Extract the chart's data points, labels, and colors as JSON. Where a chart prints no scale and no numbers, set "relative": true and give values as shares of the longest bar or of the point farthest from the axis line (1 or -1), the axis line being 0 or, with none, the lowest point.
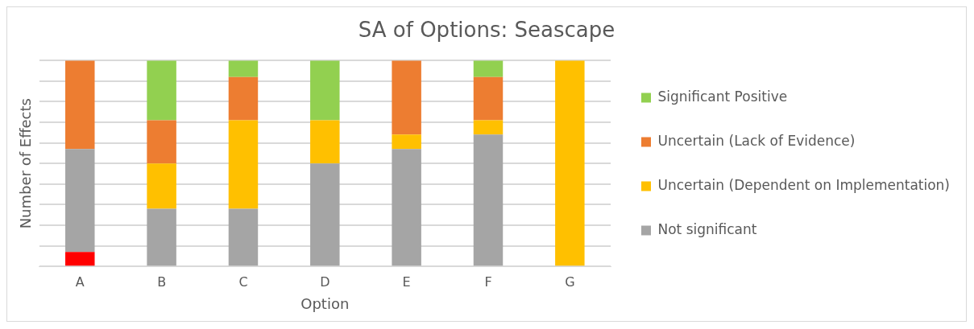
{
  "chart_data": {
    "type": "bar",
    "title": "SA of Options: Seascape",
    "xlabel": "Option",
    "ylabel": "Number of Effects",
    "relative": true,
    "stacked": true,
    "grid": "y",
    "legend": "right",
    "categories": [
      "A",
      "B",
      "C",
      "D",
      "E",
      "F",
      "G"
    ],
    "series": [
      {
        "color": "#ff0000",
        "values": [
          0.07,
          0,
          0,
          0,
          0,
          0,
          0
        ]
      },
      {
        "name": "Not significant",
        "color": "#a5a5a5",
        "values": [
          0.5,
          0.28,
          0.28,
          0.5,
          0.57,
          0.64,
          0
        ]
      },
      {
        "name": "Uncertain (Dependent on Implementation)",
        "color": "#ffc000",
        "values": [
          0,
          0.22,
          0.43,
          0.21,
          0.07,
          0.07,
          1
        ]
      },
      {
        "name": "Uncertain (Lack of Evidence)",
        "color": "#ed7d31",
        "values": [
          0.43,
          0.21,
          0.21,
          0,
          0.36,
          0.21,
          0
        ]
      },
      {
        "name": "Significant Positive",
        "color": "#92d050",
        "values": [
          0,
          0.29,
          0.08,
          0.29,
          0,
          0.08,
          0
        ]
      }
    ]
  }
}
